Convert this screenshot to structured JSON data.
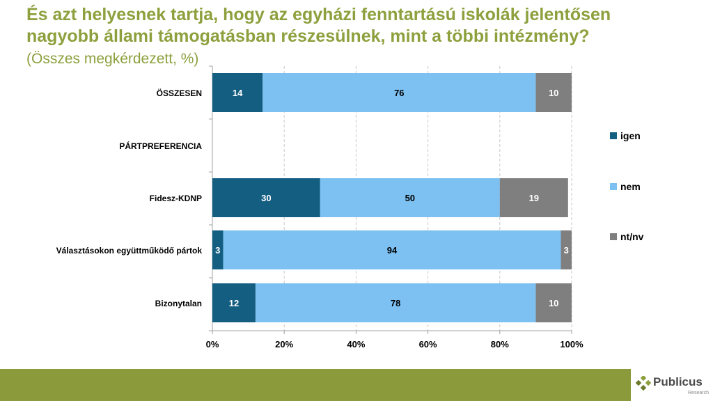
{
  "title_lines": [
    "És azt helyesnek tartja, hogy az egyházi fenntartású iskolák jelentősen",
    "nagyobb állami támogatásban részesülnek, mint a többi intézmény?"
  ],
  "subtitle": "(Összes megkérdezett, %)",
  "brand": {
    "name": "Publicus",
    "sub": "Research"
  },
  "colors": {
    "title": "#8da03d",
    "footer": "#8b9a3a",
    "igen": "#145e82",
    "nem": "#7cc1f2",
    "ntnv": "#7f7f7f"
  },
  "chart_data": {
    "type": "bar",
    "orientation": "horizontal",
    "stacked": "percent",
    "categories": [
      "ÖSSZESEN",
      "PÁRTPREFERENCIA",
      "Fidesz-KDNP",
      "Választásokon együttműködő pártok",
      "Bizonytalan"
    ],
    "series": [
      {
        "name": "igen",
        "values": [
          14,
          null,
          30,
          3,
          12
        ]
      },
      {
        "name": "nem",
        "values": [
          76,
          null,
          50,
          94,
          78
        ]
      },
      {
        "name": "nt/nv",
        "values": [
          10,
          null,
          19,
          3,
          10
        ]
      }
    ],
    "xlim": [
      0,
      100
    ],
    "xticks": [
      "0%",
      "20%",
      "40%",
      "60%",
      "80%",
      "100%"
    ],
    "legend": "right",
    "grid": "vertical dashed"
  }
}
